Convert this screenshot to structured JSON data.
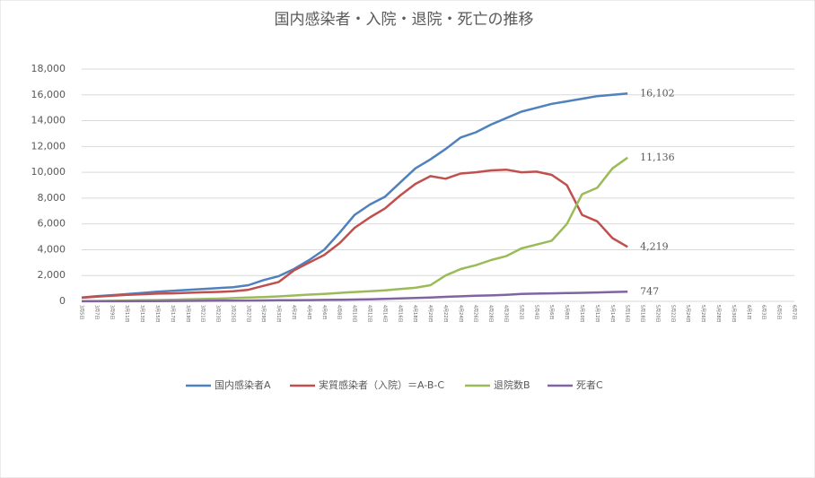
{
  "chart_data": {
    "type": "line",
    "title": "国内感染者・入院・退院・死亡の推移",
    "categories": [
      "3月5日",
      "3月7日",
      "3月9日",
      "3月11日",
      "3月13日",
      "3月15日",
      "3月17日",
      "3月19日",
      "3月21日",
      "3月23日",
      "3月25日",
      "3月27日",
      "3月29日",
      "3月31日",
      "4月2日",
      "4月4日",
      "4月6日",
      "4月8日",
      "4月10日",
      "4月12日",
      "4月14日",
      "4月16日",
      "4月18日",
      "4月20日",
      "4月22日",
      "4月24日",
      "4月26日",
      "4月28日",
      "4月30日",
      "5月2日",
      "5月4日",
      "5月6日",
      "5月8日",
      "5月10日",
      "5月12日",
      "5月14日",
      "5月16日",
      "5月18日",
      "5月20日",
      "5月22日",
      "5月24日",
      "5月26日",
      "5月28日",
      "5月30日",
      "6月1日",
      "6月3日",
      "6月5日",
      "6月7日"
    ],
    "series": [
      {
        "name": "国内感染者A",
        "color": "#4f81bd",
        "values": [
          300,
          400,
          480,
          560,
          650,
          750,
          820,
          880,
          950,
          1020,
          1100,
          1250,
          1650,
          1950,
          2500,
          3200,
          4000,
          5300,
          6700,
          7500,
          8100,
          9200,
          10300,
          11000,
          11800,
          12700,
          13100,
          13700,
          14200,
          14700,
          15000,
          15300,
          15500,
          15700,
          15900,
          16000,
          16102,
          null,
          null,
          null,
          null,
          null,
          null,
          null,
          null,
          null,
          null,
          null
        ],
        "value_labels": [
          null,
          null,
          null,
          null,
          null,
          null,
          null,
          null,
          null,
          null,
          null,
          null,
          null,
          null,
          null,
          null,
          null,
          null,
          null,
          null,
          null,
          null,
          null,
          null,
          null,
          null,
          null,
          null,
          null,
          null,
          null,
          null,
          null,
          null,
          null,
          null,
          "16,102",
          null,
          null,
          null,
          null,
          null,
          null,
          null,
          null,
          null,
          null,
          null
        ]
      },
      {
        "name": "実質感染者（入院）＝A-B-C",
        "color": "#c0504d",
        "values": [
          280,
          370,
          440,
          500,
          550,
          600,
          620,
          660,
          700,
          730,
          780,
          900,
          1200,
          1500,
          2400,
          3000,
          3600,
          4500,
          5700,
          6500,
          7200,
          8200,
          9100,
          9700,
          9500,
          9900,
          10000,
          10150,
          10200,
          10000,
          10050,
          9800,
          9000,
          6700,
          6200,
          4900,
          4219,
          null,
          null,
          null,
          null,
          null,
          null,
          null,
          null,
          null,
          null,
          null
        ],
        "value_labels": [
          null,
          null,
          null,
          null,
          null,
          null,
          null,
          null,
          null,
          null,
          null,
          null,
          null,
          null,
          null,
          null,
          null,
          null,
          null,
          null,
          null,
          null,
          null,
          null,
          null,
          null,
          null,
          null,
          null,
          null,
          null,
          null,
          null,
          null,
          null,
          null,
          "4,219",
          null,
          null,
          null,
          null,
          null,
          null,
          null,
          null,
          null,
          null,
          null
        ]
      },
      {
        "name": "退院数B",
        "color": "#9bbb59",
        "values": [
          10,
          20,
          40,
          60,
          80,
          100,
          120,
          150,
          180,
          210,
          250,
          290,
          330,
          380,
          450,
          520,
          580,
          650,
          720,
          780,
          850,
          950,
          1050,
          1250,
          2000,
          2500,
          2800,
          3200,
          3500,
          4100,
          4400,
          4700,
          6000,
          8300,
          8800,
          10300,
          11136,
          null,
          null,
          null,
          null,
          null,
          null,
          null,
          null,
          null,
          null,
          null
        ],
        "value_labels": [
          null,
          null,
          null,
          null,
          null,
          null,
          null,
          null,
          null,
          null,
          null,
          null,
          null,
          null,
          null,
          null,
          null,
          null,
          null,
          null,
          null,
          null,
          null,
          null,
          null,
          null,
          null,
          null,
          null,
          null,
          null,
          null,
          null,
          null,
          null,
          null,
          "11,136",
          null,
          null,
          null,
          null,
          null,
          null,
          null,
          null,
          null,
          null,
          null
        ]
      },
      {
        "name": "死者C",
        "color": "#8064a2",
        "values": [
          6,
          6,
          6,
          8,
          12,
          21,
          28,
          36,
          43,
          50,
          54,
          60,
          70,
          80,
          90,
          100,
          110,
          120,
          140,
          160,
          190,
          220,
          260,
          300,
          350,
          390,
          430,
          460,
          510,
          580,
          600,
          620,
          640,
          660,
          690,
          720,
          747,
          null,
          null,
          null,
          null,
          null,
          null,
          null,
          null,
          null,
          null,
          null
        ],
        "value_labels": [
          null,
          null,
          null,
          null,
          null,
          null,
          null,
          null,
          null,
          null,
          null,
          null,
          null,
          null,
          null,
          null,
          null,
          null,
          null,
          null,
          null,
          null,
          null,
          null,
          null,
          null,
          null,
          null,
          null,
          null,
          null,
          null,
          null,
          null,
          null,
          null,
          "747",
          null,
          null,
          null,
          null,
          null,
          null,
          null,
          null,
          null,
          null,
          null
        ]
      }
    ],
    "ylim": [
      0,
      18000
    ],
    "yticks": [
      0,
      {
        "value": 2000,
        "label": "2,000"
      },
      {
        "value": 4000,
        "label": "4,000"
      },
      {
        "value": 6000,
        "label": "6,000"
      },
      {
        "value": 8000,
        "label": "8,000"
      },
      {
        "value": 10000,
        "label": "10,000"
      },
      {
        "value": 12000,
        "label": "12,000"
      },
      {
        "value": 14000,
        "label": "14,000"
      },
      {
        "value": 16000,
        "label": "16,000"
      },
      {
        "value": 18000,
        "label": "18,000"
      }
    ],
    "grid": true,
    "legend": "bottom"
  }
}
